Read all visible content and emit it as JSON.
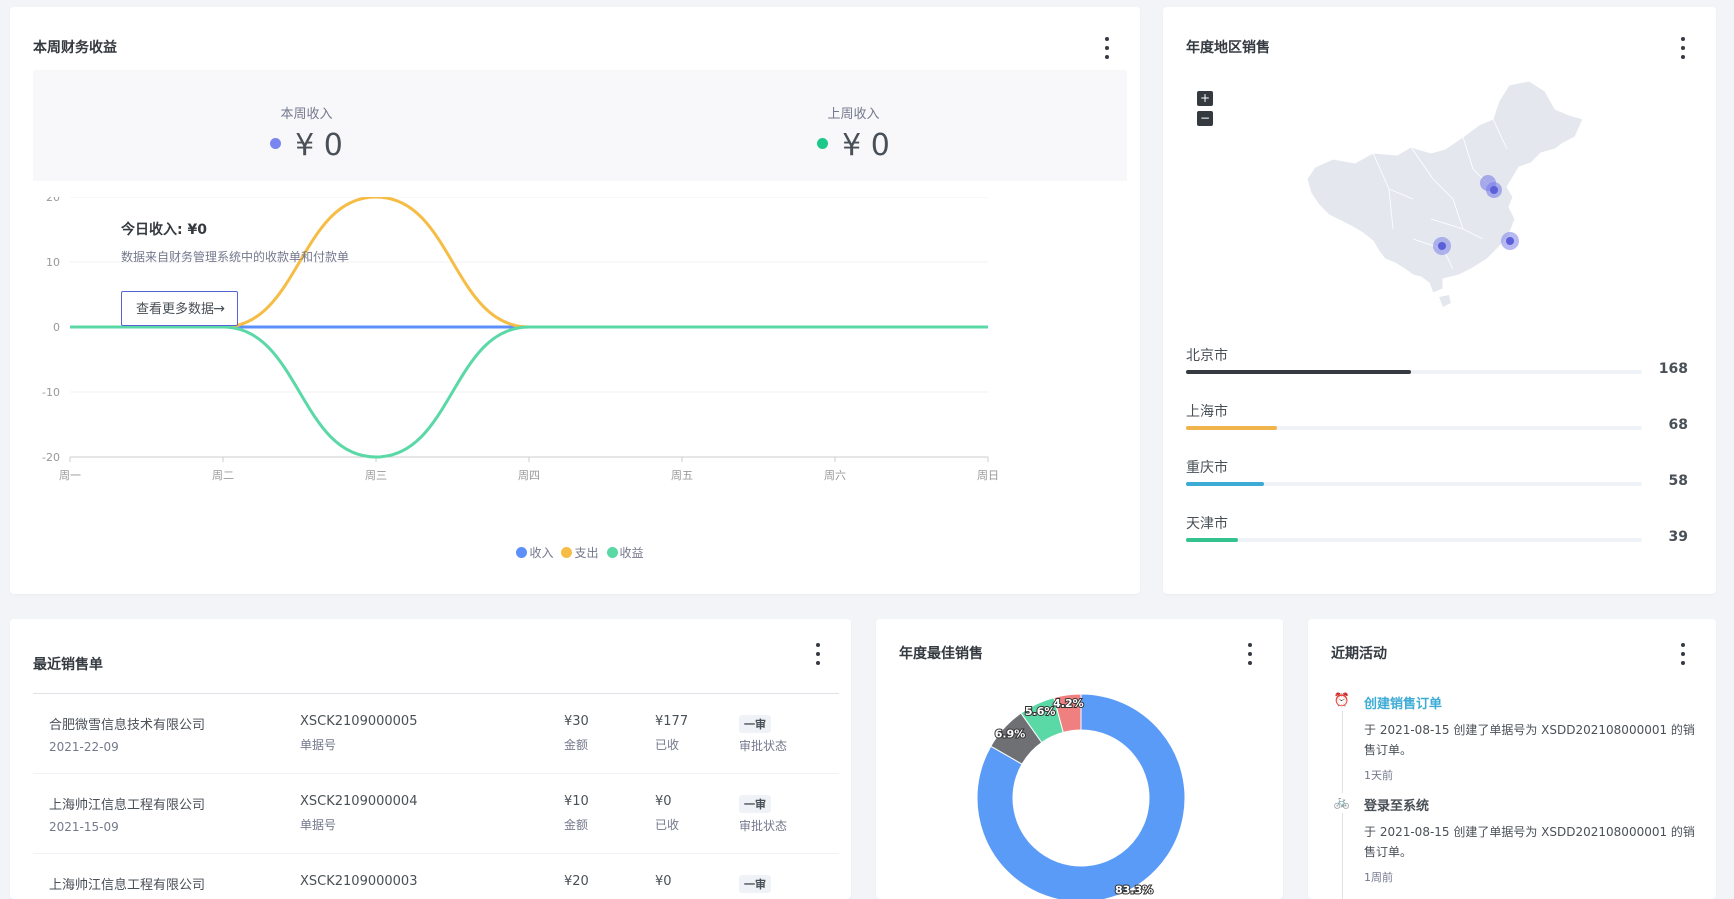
{
  "finance": {
    "title": "本周财务收益",
    "this_week": {
      "label": "本周收入",
      "value": "¥ 0",
      "color": "#7a86f0"
    },
    "last_week": {
      "label": "上周收入",
      "value": "¥ 0",
      "color": "#1cc88a"
    },
    "overlay": {
      "title": "今日收入: ¥0",
      "desc": "数据来自财务管理系统中的收款单和付款单",
      "button": "查看更多数据",
      "button_arrow": "→"
    }
  },
  "chart_data": {
    "type": "line",
    "categories": [
      "周一",
      "周二",
      "周三",
      "周四",
      "周五",
      "周六",
      "周日"
    ],
    "series": [
      {
        "name": "收入",
        "values": [
          0,
          0,
          0,
          0,
          0,
          0,
          0
        ],
        "color": "#5b8ff9"
      },
      {
        "name": "支出",
        "values": [
          0,
          0,
          20,
          0,
          0,
          0,
          0
        ],
        "color": "#f6bd46"
      },
      {
        "name": "收益",
        "values": [
          0,
          0,
          -20,
          0,
          0,
          0,
          0
        ],
        "color": "#5ad8a6"
      }
    ],
    "yticks": [
      "20",
      "10",
      "0",
      "-10",
      "-20"
    ],
    "ylim": [
      -20,
      20
    ],
    "legend_position": "bottom"
  },
  "region": {
    "title": "年度地区销售",
    "zoom_in": "+",
    "zoom_out": "−",
    "max": 340,
    "items": [
      {
        "name": "北京市",
        "value": "168",
        "amount": 168,
        "color": "#343a40"
      },
      {
        "name": "上海市",
        "value": "68",
        "amount": 68,
        "color": "#f1b44c"
      },
      {
        "name": "重庆市",
        "value": "58",
        "amount": 58,
        "color": "#3cabd5"
      },
      {
        "name": "天津市",
        "value": "39",
        "amount": 39,
        "color": "#34c38f"
      }
    ]
  },
  "sales": {
    "title": "最近销售单",
    "rows": [
      {
        "company": "合肥微雪信息技术有限公司",
        "date": "2021-22-09",
        "order_no": "XSCK2109000005",
        "order_no_label": "单据号",
        "amount": "¥30",
        "amount_label": "金额",
        "received": "¥177",
        "received_label": "已收",
        "status": "一审",
        "status_label": "审批状态"
      },
      {
        "company": "上海帅江信息工程有限公司",
        "date": "2021-15-09",
        "order_no": "XSCK2109000004",
        "order_no_label": "单据号",
        "amount": "¥10",
        "amount_label": "金额",
        "received": "¥0",
        "received_label": "已收",
        "status": "一审",
        "status_label": "审批状态"
      },
      {
        "company": "上海帅江信息工程有限公司",
        "date": "",
        "order_no": "XSCK2109000003",
        "order_no_label": "",
        "amount": "¥20",
        "amount_label": "",
        "received": "¥0",
        "received_label": "",
        "status": "一审",
        "status_label": ""
      }
    ]
  },
  "best": {
    "title": "年度最佳销售",
    "slices": [
      {
        "label": "83.3%",
        "value": 83.3,
        "color": "#5b9bf8"
      },
      {
        "label": "6.9%",
        "value": 6.9,
        "color": "#6e7074"
      },
      {
        "label": "5.6%",
        "value": 5.6,
        "color": "#5ad8a6"
      },
      {
        "label": "4.2%",
        "value": 4.2,
        "color": "#f08080"
      }
    ]
  },
  "activity": {
    "title": "近期活动",
    "items": [
      {
        "title": "创建销售订单",
        "desc": "于 2021-08-15 创建了单据号为 XSDD202108000001 的销售订单。",
        "time": "1天前",
        "icon": "alarm-clock-icon",
        "color": "#3cabd5"
      },
      {
        "title": "登录至系统",
        "desc": "于 2021-08-15 创建了单据号为 XSDD202108000001 的销售订单。",
        "time": "1周前",
        "icon": "bicycle-icon",
        "color": "#495057"
      }
    ]
  }
}
